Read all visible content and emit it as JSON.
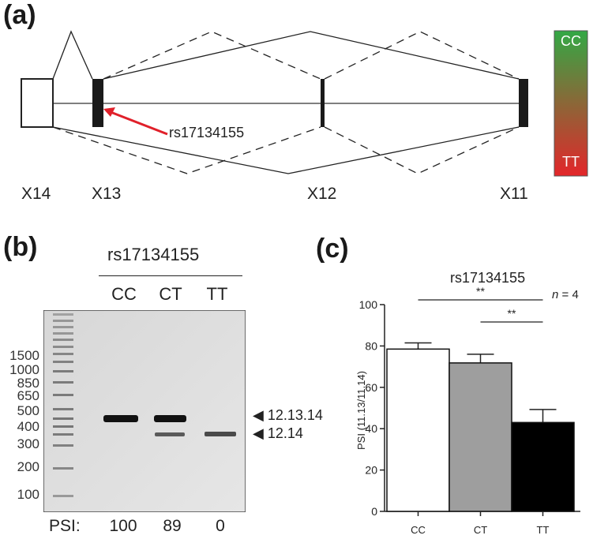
{
  "panel_a": {
    "label": "(a)",
    "exons": [
      "X14",
      "X13",
      "X12",
      "X11"
    ],
    "snp_label": "rs17134155",
    "scale_top": "CC",
    "scale_bottom": "TT",
    "colors": {
      "arrow": "#e0202a",
      "scale_top": "#33a845",
      "scale_bottom": "#e3262a"
    }
  },
  "panel_b": {
    "label": "(b)",
    "snp_label": "rs17134155",
    "lanes": [
      "CC",
      "CT",
      "TT"
    ],
    "ladder": [
      "1500",
      "1000",
      "850",
      "650",
      "500",
      "400",
      "300",
      "200",
      "100"
    ],
    "band_labels": [
      "12.13.14",
      "12.14"
    ],
    "psi_label": "PSI:",
    "psi_values": [
      "100",
      "89",
      "0"
    ]
  },
  "panel_c": {
    "label": "(c)",
    "chart_data": {
      "type": "bar",
      "title": "rs17134155",
      "ylabel": "PSI (11.13/11.14)",
      "categories": [
        "CC",
        "CT",
        "TT"
      ],
      "values": [
        78.5,
        71.8,
        43.0
      ],
      "errors": [
        3.0,
        4.2,
        6.3
      ],
      "bar_colors": [
        "#ffffff",
        "#9e9e9e",
        "#000000"
      ],
      "ylim": [
        0,
        100
      ],
      "yticks": [
        "0",
        "20",
        "40",
        "60",
        "80",
        "100"
      ],
      "annotations": [
        {
          "text": "**",
          "from": "CC",
          "to": "TT"
        },
        {
          "text": "**",
          "from": "CT",
          "to": "TT"
        }
      ],
      "n_label": "n",
      "n_value": "= 4"
    }
  }
}
